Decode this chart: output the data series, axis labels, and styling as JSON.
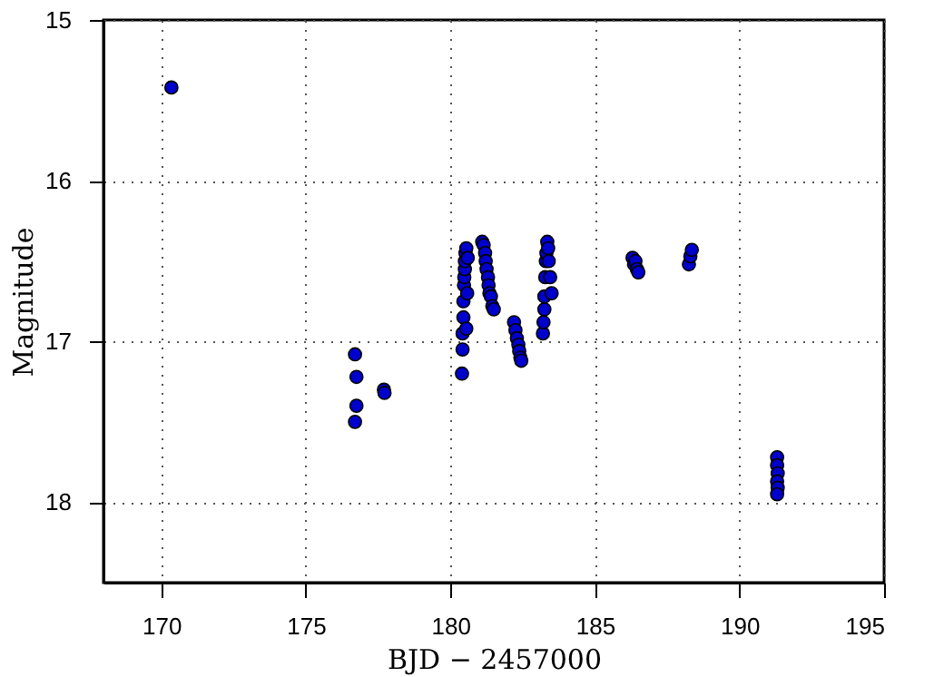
{
  "chart_data": {
    "type": "scatter",
    "xlabel": "BJD − 2457000",
    "ylabel": "Magnitude",
    "x": [
      170.35,
      176.7,
      176.75,
      176.75,
      176.7,
      177.7,
      177.72,
      180.4,
      180.42,
      180.42,
      180.45,
      180.45,
      180.47,
      180.48,
      180.5,
      180.5,
      180.52,
      180.55,
      180.55,
      180.58,
      180.6,
      181.1,
      181.15,
      181.2,
      181.22,
      181.25,
      181.3,
      181.32,
      181.35,
      181.4,
      181.45,
      181.5,
      182.2,
      182.25,
      182.3,
      182.35,
      182.38,
      182.42,
      182.45,
      183.2,
      183.22,
      183.25,
      183.25,
      183.28,
      183.3,
      183.32,
      183.35,
      183.38,
      183.4,
      183.45,
      183.5,
      186.3,
      186.35,
      186.4,
      186.45,
      186.5,
      188.25,
      188.3,
      188.35,
      191.3,
      191.3,
      191.32,
      191.3,
      191.32,
      191.3
    ],
    "values": [
      15.42,
      17.08,
      17.22,
      17.4,
      17.5,
      17.3,
      17.32,
      17.2,
      17.05,
      16.95,
      16.85,
      16.75,
      16.65,
      16.6,
      16.55,
      16.5,
      16.45,
      16.42,
      16.92,
      16.7,
      16.48,
      16.38,
      16.4,
      16.45,
      16.5,
      16.55,
      16.6,
      16.65,
      16.7,
      16.72,
      16.78,
      16.8,
      16.88,
      16.93,
      16.98,
      17.02,
      17.06,
      17.1,
      17.12,
      16.95,
      16.88,
      16.8,
      16.72,
      16.6,
      16.5,
      16.45,
      16.38,
      16.42,
      16.5,
      16.6,
      16.7,
      16.48,
      16.52,
      16.5,
      16.55,
      16.57,
      16.52,
      16.47,
      16.43,
      17.72,
      17.77,
      17.82,
      17.87,
      17.91,
      17.95
    ],
    "color": "#0000cc",
    "marker": "circle",
    "xlim": [
      168,
      195
    ],
    "xticks": [
      170,
      175,
      180,
      185,
      190,
      195
    ],
    "ylim": [
      18.5,
      15
    ],
    "yticks": [
      15,
      16,
      17,
      18
    ],
    "grid": true
  }
}
